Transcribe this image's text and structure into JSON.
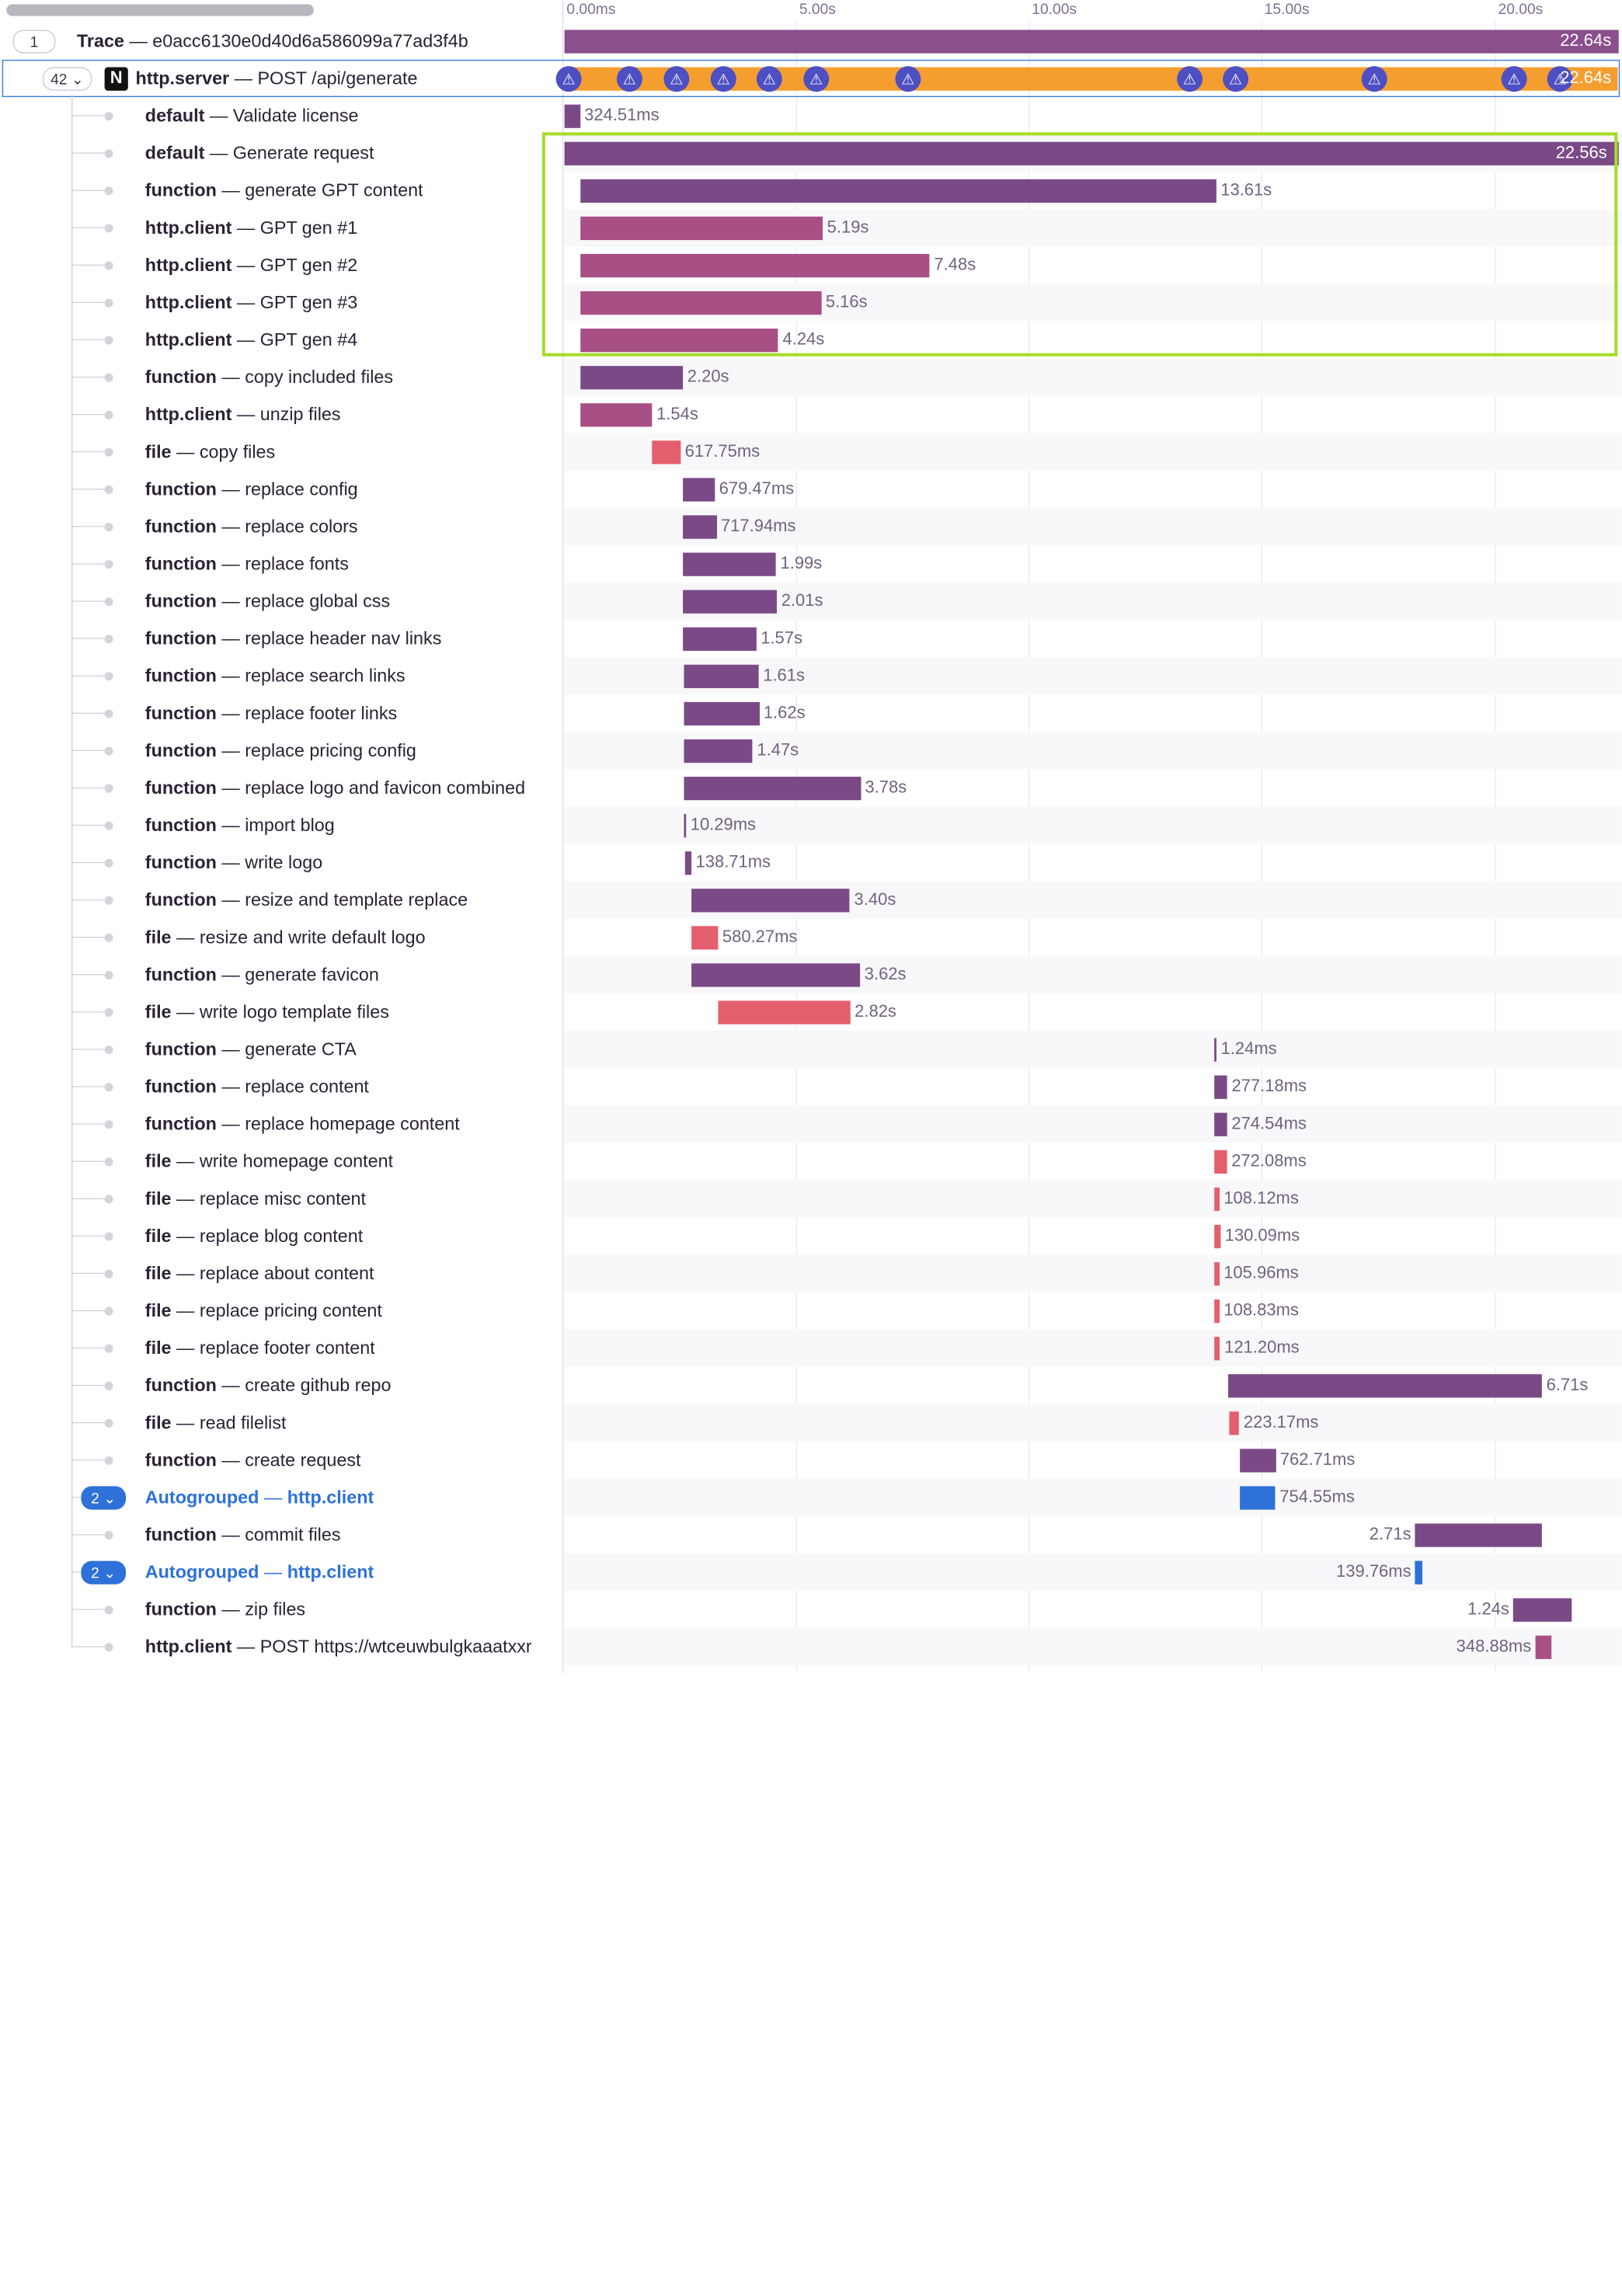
{
  "timeline_ticks": [
    "0.00ms",
    "5.00s",
    "10.00s",
    "15.00s",
    "20.00s"
  ],
  "trace_row": {
    "count_badge": "1",
    "op": "Trace",
    "sep": "—",
    "desc": "e0acc6130e0d40d6a586099a77ad3f4b",
    "duration": "22.64s"
  },
  "server_row": {
    "count_badge": "42",
    "chevron": "chevron-down-icon",
    "project_icon": "N",
    "op": "http.server",
    "sep": "—",
    "desc": "POST /api/generate",
    "duration": "22.64s",
    "warning_icon": "⚠"
  },
  "spans": [
    {
      "op": "default",
      "desc": "Validate license",
      "duration": "324.51ms"
    },
    {
      "op": "default",
      "desc": "Generate request",
      "duration": "22.56s"
    },
    {
      "op": "function",
      "desc": "generate GPT content",
      "duration": "13.61s"
    },
    {
      "op": "http.client",
      "desc": "GPT gen #1",
      "duration": "5.19s"
    },
    {
      "op": "http.client",
      "desc": "GPT gen #2",
      "duration": "7.48s"
    },
    {
      "op": "http.client",
      "desc": "GPT gen #3",
      "duration": "5.16s"
    },
    {
      "op": "http.client",
      "desc": "GPT gen #4",
      "duration": "4.24s"
    },
    {
      "op": "function",
      "desc": "copy included files",
      "duration": "2.20s"
    },
    {
      "op": "http.client",
      "desc": "unzip files",
      "duration": "1.54s"
    },
    {
      "op": "file",
      "desc": "copy files",
      "duration": "617.75ms"
    },
    {
      "op": "function",
      "desc": "replace config",
      "duration": "679.47ms"
    },
    {
      "op": "function",
      "desc": "replace colors",
      "duration": "717.94ms"
    },
    {
      "op": "function",
      "desc": "replace fonts",
      "duration": "1.99s"
    },
    {
      "op": "function",
      "desc": "replace global css",
      "duration": "2.01s"
    },
    {
      "op": "function",
      "desc": "replace header nav links",
      "duration": "1.57s"
    },
    {
      "op": "function",
      "desc": "replace search links",
      "duration": "1.61s"
    },
    {
      "op": "function",
      "desc": "replace footer links",
      "duration": "1.62s"
    },
    {
      "op": "function",
      "desc": "replace pricing config",
      "duration": "1.47s"
    },
    {
      "op": "function",
      "desc": "replace logo and favicon combined",
      "duration": "3.78s"
    },
    {
      "op": "function",
      "desc": "import blog",
      "duration": "10.29ms"
    },
    {
      "op": "function",
      "desc": "write logo",
      "duration": "138.71ms"
    },
    {
      "op": "function",
      "desc": "resize and template replace",
      "duration": "3.40s"
    },
    {
      "op": "file",
      "desc": "resize and write default logo",
      "duration": "580.27ms"
    },
    {
      "op": "function",
      "desc": "generate favicon",
      "duration": "3.62s"
    },
    {
      "op": "file",
      "desc": "write logo template files",
      "duration": "2.82s"
    },
    {
      "op": "function",
      "desc": "generate CTA",
      "duration": "1.24ms"
    },
    {
      "op": "function",
      "desc": "replace content",
      "duration": "277.18ms"
    },
    {
      "op": "function",
      "desc": "replace homepage content",
      "duration": "274.54ms"
    },
    {
      "op": "file",
      "desc": "write homepage content",
      "duration": "272.08ms"
    },
    {
      "op": "file",
      "desc": "replace misc content",
      "duration": "108.12ms"
    },
    {
      "op": "file",
      "desc": "replace blog content",
      "duration": "130.09ms"
    },
    {
      "op": "file",
      "desc": "replace about content",
      "duration": "105.96ms"
    },
    {
      "op": "file",
      "desc": "replace pricing content",
      "duration": "108.83ms"
    },
    {
      "op": "file",
      "desc": "replace footer content",
      "duration": "121.20ms"
    },
    {
      "op": "function",
      "desc": "create github repo",
      "duration": "6.71s"
    },
    {
      "op": "file",
      "desc": "read filelist",
      "duration": "223.17ms"
    },
    {
      "op": "function",
      "desc": "create request",
      "duration": "762.71ms"
    },
    {
      "op": "Autogrouped",
      "desc": "http.client",
      "duration": "754.55ms",
      "group_count": "2"
    },
    {
      "op": "function",
      "desc": "commit files",
      "duration": "2.71s"
    },
    {
      "op": "Autogrouped",
      "desc": "http.client",
      "duration": "139.76ms",
      "group_count": "2"
    },
    {
      "op": "function",
      "desc": "zip files",
      "duration": "1.24s"
    },
    {
      "op": "http.client",
      "desc": "POST https://wtceuwbulgkaaatxxr",
      "duration": "348.88ms"
    }
  ],
  "colors": {
    "function": "#7b4a86",
    "default": "#7b4a86",
    "http.client": "#a84f85",
    "file": "#e45f6d",
    "autogroup": "#2e71d8",
    "server": "#f59e30",
    "trace": "#8a4f8c",
    "highlight": "#a6dd2a"
  }
}
